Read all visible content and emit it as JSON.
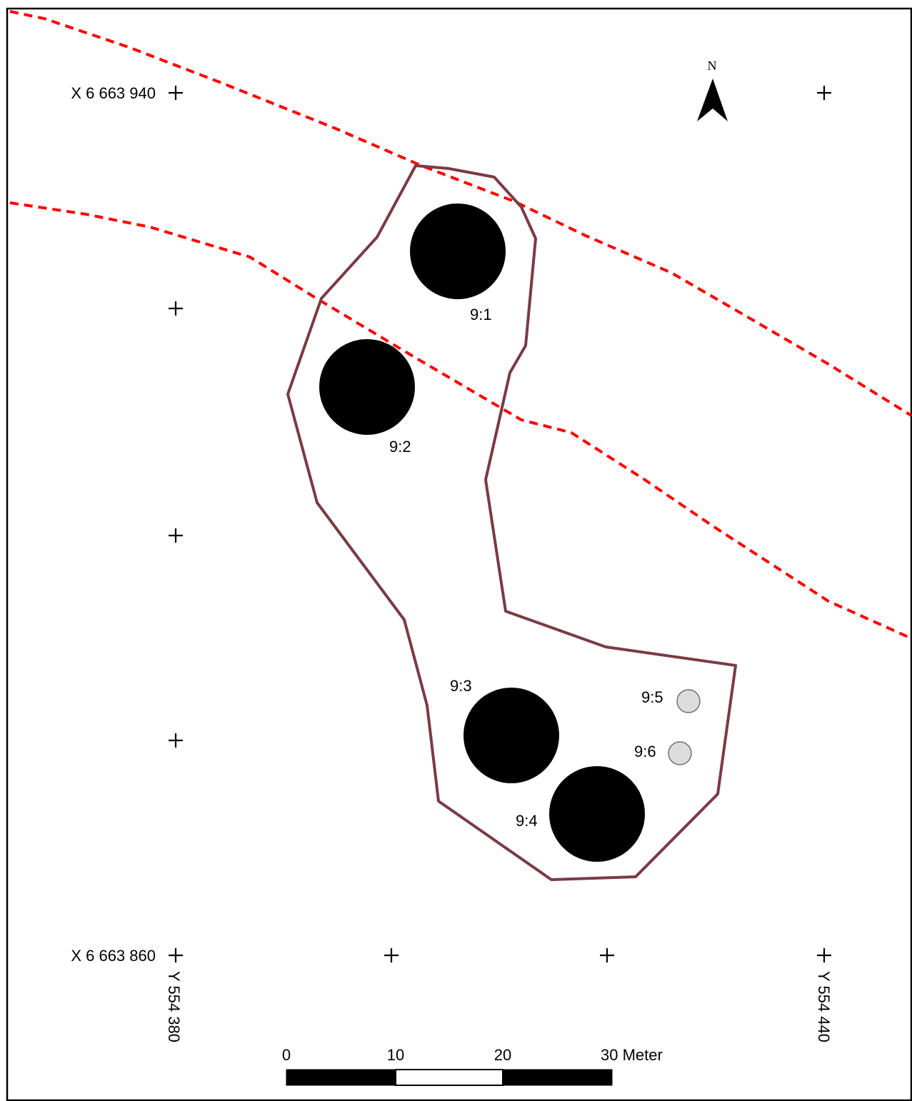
{
  "colors": {
    "boundary": "#7b3a44",
    "dashed_lines": "#ff0000",
    "large_features": "#000000",
    "small_features": "#dcdcdc",
    "frame": "#000000"
  },
  "north_arrow": {
    "label": "N",
    "icon": "north-arrow-icon"
  },
  "coordinates": {
    "x_top": "X 6 663 940",
    "x_bottom": "X 6 663 860",
    "y_left": "Y 554 380",
    "y_right": "Y 554 440"
  },
  "features": [
    {
      "id": "9:1",
      "kind": "large"
    },
    {
      "id": "9:2",
      "kind": "large"
    },
    {
      "id": "9:3",
      "kind": "large"
    },
    {
      "id": "9:4",
      "kind": "large"
    },
    {
      "id": "9:5",
      "kind": "small"
    },
    {
      "id": "9:6",
      "kind": "small"
    }
  ],
  "scale_bar": {
    "labels": [
      "0",
      "10",
      "20",
      "30 Meter"
    ],
    "segments": 3,
    "units": "Meter"
  }
}
